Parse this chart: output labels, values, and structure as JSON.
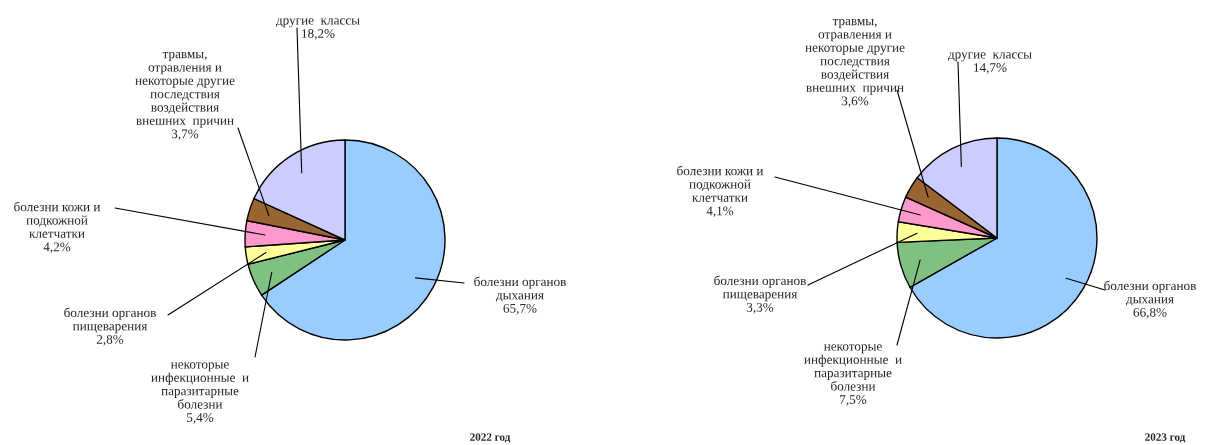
{
  "chart_data": [
    {
      "type": "pie",
      "title": "2022 год",
      "categories": [
        "болезни органов\nдыхания",
        "некоторые\nинфекционные  и\nпаразитарные\nболезни",
        "болезни органов\nпищеварения",
        "болезни кожи и\nподкожной\nклетчатки",
        "травмы,\nотравления и\nнекоторые другие\nпоследствия\nвоздействия\nвнешних  причин",
        "другие  классы"
      ],
      "values": [
        65.7,
        5.4,
        2.8,
        4.2,
        3.7,
        18.2
      ],
      "value_labels": [
        "65,7%",
        "5,4%",
        "2,8%",
        "4,2%",
        "3,7%",
        "18,2%"
      ],
      "colors": [
        "#99ccff",
        "#80c080",
        "#ffff99",
        "#ff99cc",
        "#996633",
        "#ccccff"
      ]
    },
    {
      "type": "pie",
      "title": "2023 год",
      "categories": [
        "болезни органов\nдыхания",
        "некоторые\nинфекционные  и\nпаразитарные\nболезни",
        "болезни органов\nпищеварения",
        "болезни кожи и\nподкожной\nклетчатки",
        "травмы,\nотравления и\nнекоторые другие\nпоследствия\nвоздействия\nвнешних  причин",
        "другие  классы"
      ],
      "values": [
        66.8,
        7.5,
        3.3,
        4.1,
        3.6,
        14.7
      ],
      "value_labels": [
        "66,8%",
        "7,5%",
        "3,3%",
        "4,1%",
        "3,6%",
        "14,7%"
      ],
      "colors": [
        "#99ccff",
        "#80c080",
        "#ffff99",
        "#ff99cc",
        "#996633",
        "#ccccff"
      ]
    }
  ]
}
